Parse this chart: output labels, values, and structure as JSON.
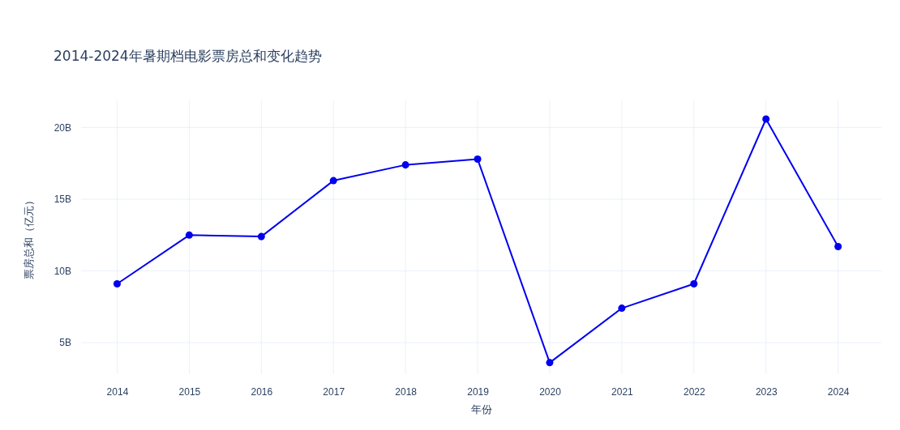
{
  "chart_data": {
    "type": "line",
    "title": "2014-2024年暑期档电影票房总和变化趋势",
    "xlabel": "年份",
    "ylabel": "票房总和（亿元）",
    "x": [
      2014,
      2015,
      2016,
      2017,
      2018,
      2019,
      2020,
      2021,
      2022,
      2023,
      2024
    ],
    "series": [
      {
        "color": "#0000ee",
        "values": [
          9.1,
          12.5,
          12.4,
          16.3,
          17.4,
          17.8,
          3.6,
          7.4,
          9.1,
          20.6,
          11.7
        ]
      }
    ],
    "xlim": [
      2013.5,
      2024.6
    ],
    "xticks": [
      2014,
      2015,
      2016,
      2017,
      2018,
      2019,
      2020,
      2021,
      2022,
      2023,
      2024
    ],
    "ylim": [
      2.8,
      21.9
    ],
    "yticks": [
      {
        "value": 5,
        "label": "5B"
      },
      {
        "value": 10,
        "label": "10B"
      },
      {
        "value": 15,
        "label": "15B"
      },
      {
        "value": 20,
        "label": "20B"
      }
    ],
    "grid": true,
    "marker": "circle",
    "line_style": "solid"
  }
}
